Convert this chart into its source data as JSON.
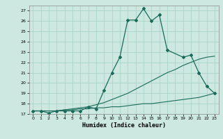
{
  "xlabel": "Humidex (Indice chaleur)",
  "background_color": "#cce8e0",
  "grid_color": "#aad4c8",
  "line_color": "#1a6b5a",
  "xlim": [
    -0.5,
    23.5
  ],
  "ylim": [
    17,
    27.5
  ],
  "xticks": [
    0,
    1,
    2,
    3,
    4,
    5,
    6,
    7,
    8,
    9,
    10,
    11,
    12,
    13,
    14,
    15,
    16,
    17,
    18,
    19,
    20,
    21,
    22,
    23
  ],
  "yticks": [
    17,
    18,
    19,
    20,
    21,
    22,
    23,
    24,
    25,
    26,
    27
  ],
  "line1_x": [
    0,
    1,
    2,
    3,
    4,
    5,
    6,
    7,
    8,
    9,
    10,
    11,
    12,
    13,
    14,
    15,
    16,
    17,
    19,
    20,
    21,
    22,
    23
  ],
  "line1_y": [
    17.3,
    17.3,
    17.1,
    17.3,
    17.3,
    17.3,
    17.3,
    17.7,
    17.5,
    19.3,
    21.0,
    22.5,
    26.1,
    26.1,
    27.2,
    26.0,
    26.6,
    23.2,
    22.5,
    22.7,
    21.0,
    19.7,
    19.0
  ],
  "line2_x": [
    0,
    1,
    2,
    3,
    4,
    5,
    6,
    7,
    8,
    9,
    10,
    11,
    12,
    13,
    14,
    15,
    16,
    17,
    18,
    19,
    20,
    21,
    22,
    23
  ],
  "line2_y": [
    17.3,
    17.3,
    17.3,
    17.3,
    17.4,
    17.5,
    17.6,
    17.7,
    17.9,
    18.1,
    18.4,
    18.7,
    19.0,
    19.4,
    19.8,
    20.2,
    20.6,
    21.0,
    21.3,
    21.7,
    22.0,
    22.3,
    22.5,
    22.6
  ],
  "line3_x": [
    0,
    1,
    2,
    3,
    4,
    5,
    6,
    7,
    8,
    9,
    10,
    11,
    12,
    13,
    14,
    15,
    16,
    17,
    18,
    19,
    20,
    21,
    22,
    23
  ],
  "line3_y": [
    17.3,
    17.3,
    17.3,
    17.3,
    17.4,
    17.4,
    17.5,
    17.5,
    17.6,
    17.6,
    17.7,
    17.7,
    17.8,
    17.9,
    18.0,
    18.0,
    18.1,
    18.2,
    18.3,
    18.4,
    18.5,
    18.6,
    18.8,
    19.0
  ]
}
